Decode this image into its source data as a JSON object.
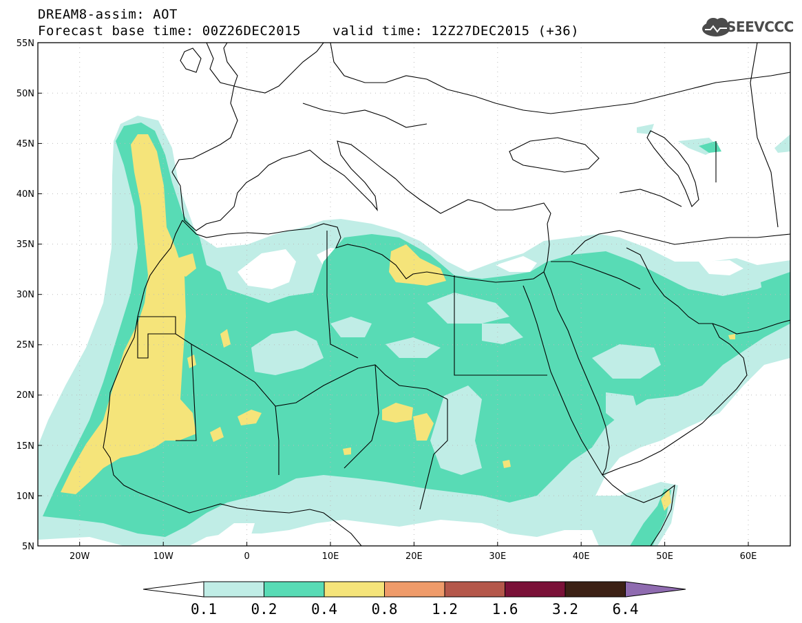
{
  "header": {
    "title": "DREAM8-assim: AOT",
    "base_time": "Forecast base time: 00Z26DEC2015",
    "valid_time": "valid time: 12Z27DEC2015 (+36)"
  },
  "logo": {
    "text": "SEEVCCC",
    "icon": "cloud-icon"
  },
  "axes": {
    "lat_labels": [
      "55N",
      "50N",
      "45N",
      "40N",
      "35N",
      "30N",
      "25N",
      "20N",
      "15N",
      "10N",
      "5N"
    ],
    "lon_labels": [
      "20W",
      "10W",
      "0",
      "10E",
      "20E",
      "30E",
      "40E",
      "50E",
      "60E"
    ],
    "lat_range": [
      5,
      55
    ],
    "lon_range": [
      -25,
      65
    ]
  },
  "colorbar": {
    "labels": [
      "0.1",
      "0.2",
      "0.4",
      "0.8",
      "1.2",
      "1.6",
      "3.2",
      "6.4"
    ],
    "colors": [
      "#ffffff",
      "#c0ede6",
      "#58dbb5",
      "#f5e47a",
      "#ef9b6a",
      "#b4574a",
      "#7a1138",
      "#3c2115",
      "#8f6bb0"
    ]
  },
  "colors": {
    "land_line": "#000000",
    "background": "#ffffff"
  }
}
